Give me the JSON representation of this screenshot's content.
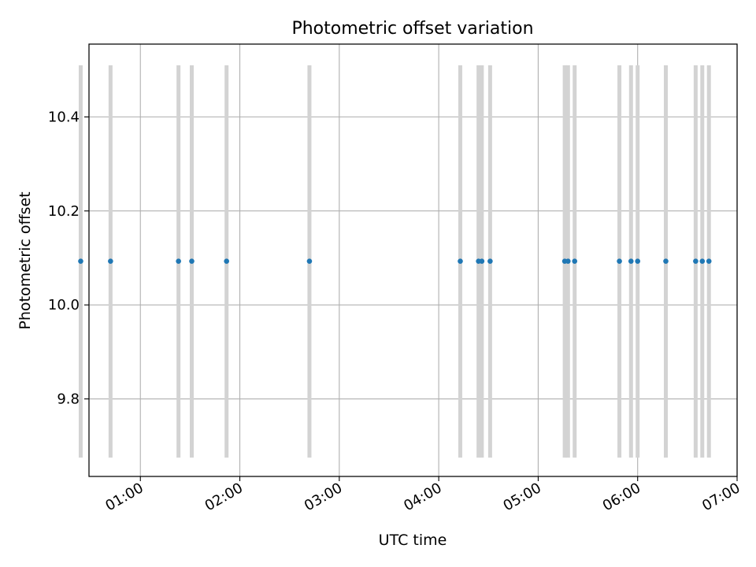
{
  "chart_data": {
    "type": "scatter",
    "title": "Photometric offset variation",
    "xlabel": "UTC time",
    "ylabel": "Photometric offset",
    "xlim": [
      "00:29",
      "07:00"
    ],
    "ylim": [
      9.635,
      10.555
    ],
    "grid": true,
    "x_ticks": [
      "01:00",
      "02:00",
      "03:00",
      "04:00",
      "05:00",
      "06:00",
      "07:00"
    ],
    "y_ticks": [
      9.8,
      10.0,
      10.2,
      10.4
    ],
    "y_tick_labels": [
      "9.8",
      "10.0",
      "10.2",
      "10.4"
    ],
    "marker_color": "#1f77b4",
    "errorbar_color": "#d3d3d3",
    "errorbar_range": [
      9.675,
      10.51
    ],
    "points": [
      {
        "x": "00:24",
        "y": 10.093
      },
      {
        "x": "00:42",
        "y": 10.093
      },
      {
        "x": "01:23",
        "y": 10.093
      },
      {
        "x": "01:31",
        "y": 10.093
      },
      {
        "x": "01:52",
        "y": 10.093
      },
      {
        "x": "02:42",
        "y": 10.093
      },
      {
        "x": "04:13",
        "y": 10.093
      },
      {
        "x": "04:24",
        "y": 10.093
      },
      {
        "x": "04:26",
        "y": 10.093
      },
      {
        "x": "04:31",
        "y": 10.093
      },
      {
        "x": "05:16",
        "y": 10.093
      },
      {
        "x": "05:18",
        "y": 10.093
      },
      {
        "x": "05:22",
        "y": 10.093
      },
      {
        "x": "05:49",
        "y": 10.093
      },
      {
        "x": "05:56",
        "y": 10.093
      },
      {
        "x": "06:00",
        "y": 10.093
      },
      {
        "x": "06:17",
        "y": 10.093
      },
      {
        "x": "06:35",
        "y": 10.093
      },
      {
        "x": "06:39",
        "y": 10.093
      },
      {
        "x": "06:43",
        "y": 10.093
      }
    ]
  }
}
